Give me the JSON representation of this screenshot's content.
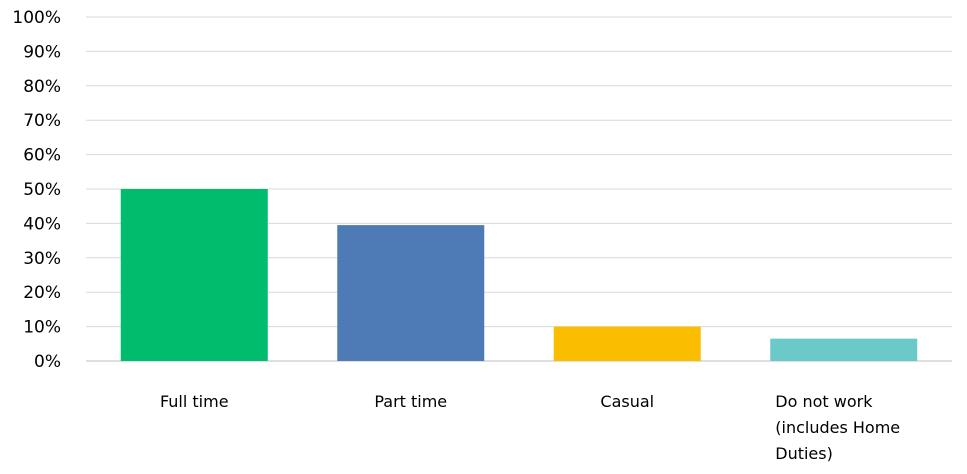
{
  "chart_data": {
    "type": "bar",
    "categories": [
      [
        "Full time"
      ],
      [
        "Part time"
      ],
      [
        "Casual"
      ],
      [
        "Do not work",
        "(includes Home",
        "Duties)"
      ]
    ],
    "values": [
      50,
      39.5,
      10,
      6.5
    ],
    "colors": [
      "#00bc6c",
      "#4e7bb5",
      "#fbbd00",
      "#6bc9c8"
    ],
    "ylim": [
      0,
      100
    ],
    "ytick_step": 10,
    "ytick_suffix": "%",
    "grid": true,
    "title": "",
    "xlabel": "",
    "ylabel": ""
  }
}
